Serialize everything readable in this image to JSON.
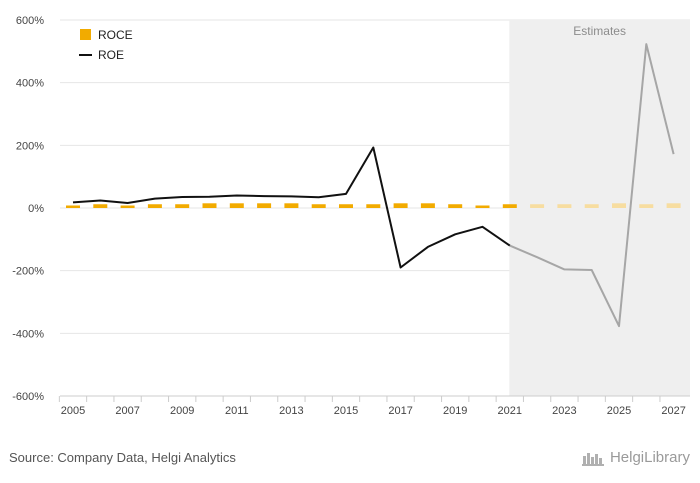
{
  "chart_data": {
    "type": "bar+line",
    "title": "",
    "xlabel": "",
    "ylabel": "",
    "ylim": [
      -600,
      600
    ],
    "yticks": [
      -600,
      -400,
      -200,
      0,
      200,
      400,
      600
    ],
    "ytick_labels": [
      "-600%",
      "-400%",
      "-200%",
      "0%",
      "200%",
      "400%",
      "600%"
    ],
    "x": [
      2005,
      2006,
      2007,
      2008,
      2009,
      2010,
      2011,
      2012,
      2013,
      2014,
      2015,
      2016,
      2017,
      2018,
      2019,
      2020,
      2021,
      2022,
      2023,
      2024,
      2025,
      2026,
      2027
    ],
    "xtick_labels": [
      "2005",
      "2007",
      "2009",
      "2011",
      "2013",
      "2015",
      "2017",
      "2019",
      "2021",
      "2023",
      "2025",
      "2027"
    ],
    "estimates_label": "Estimates",
    "estimates_from": 2021,
    "legend_position": "top-left",
    "grid": true,
    "series": [
      {
        "name": "ROCE",
        "kind": "bar",
        "color": "#f2ab00",
        "estimate_color": "#f7dda0",
        "values": [
          8,
          12,
          8,
          12,
          12,
          15,
          15,
          15,
          15,
          12,
          12,
          12,
          15,
          15,
          12,
          8,
          12,
          12,
          12,
          12,
          15,
          12,
          15
        ]
      },
      {
        "name": "ROE",
        "kind": "line",
        "color": "#111111",
        "estimate_color": "#a6a6a6",
        "values": [
          18,
          24,
          16,
          30,
          35,
          36,
          40,
          38,
          37,
          34,
          45,
          193,
          -190,
          -124,
          -84,
          -60,
          -120,
          -157,
          -196,
          -198,
          -377,
          523,
          172
        ]
      }
    ]
  },
  "footer": {
    "source": "Source: Company Data, Helgi Analytics",
    "brand": "HelgiLibrary"
  }
}
